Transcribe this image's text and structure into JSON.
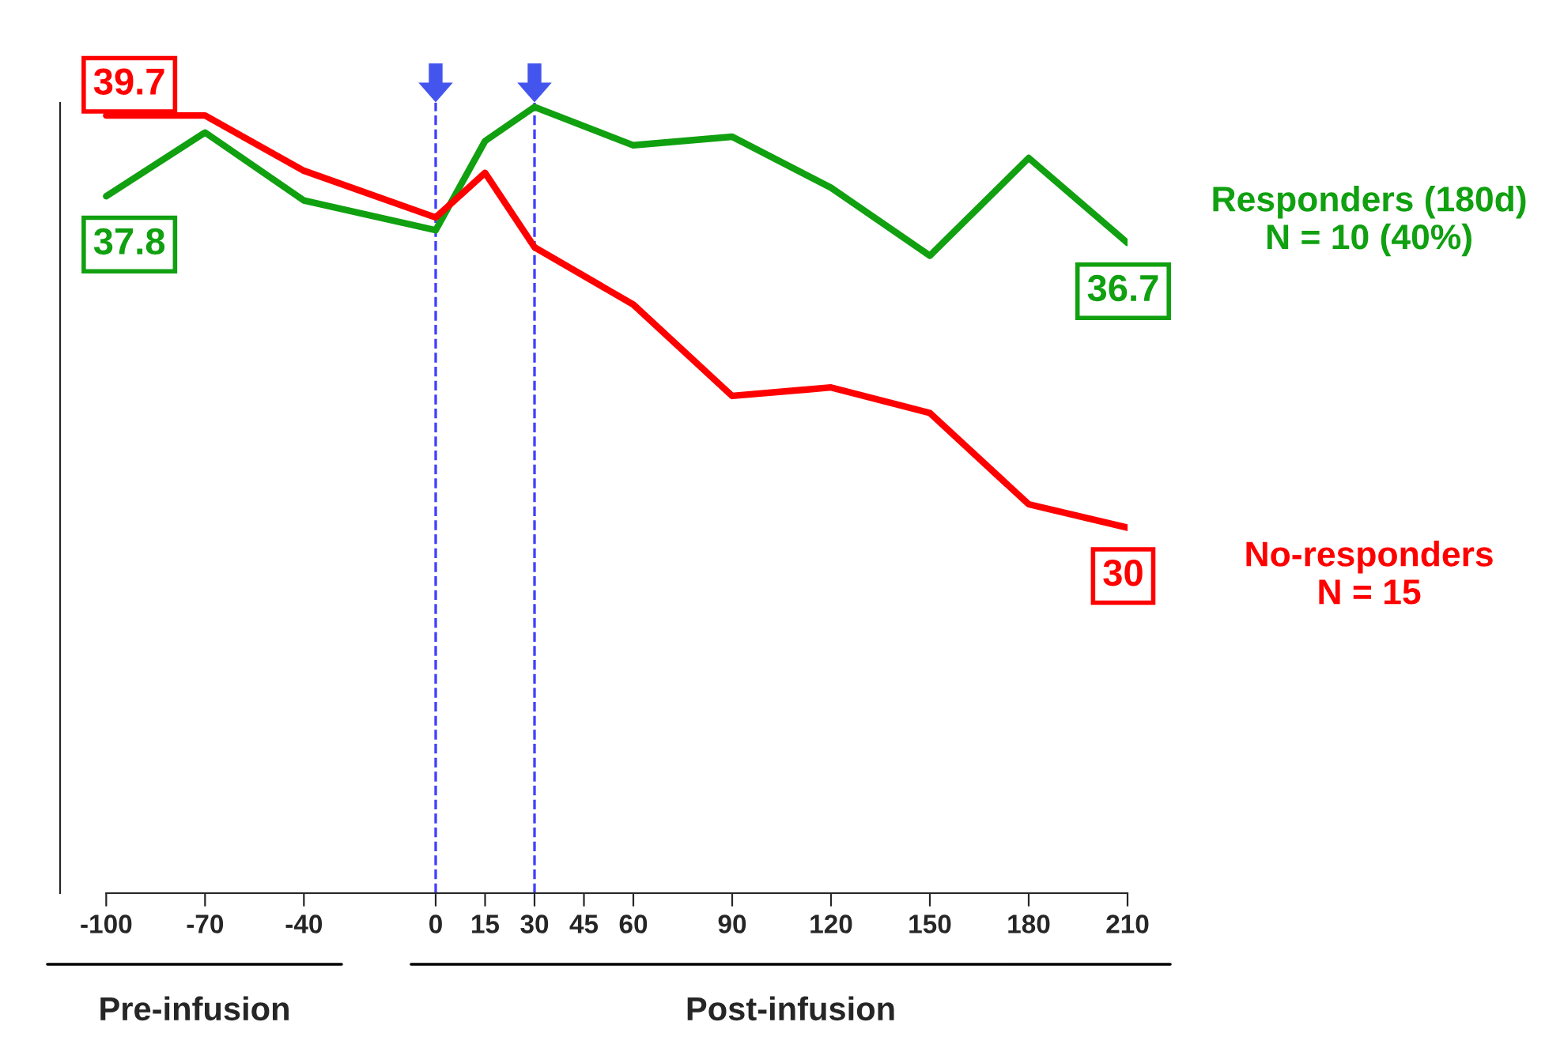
{
  "chart_data": {
    "type": "line",
    "x": [
      -100,
      -70,
      -40,
      0,
      15,
      30,
      60,
      90,
      120,
      150,
      180,
      210
    ],
    "series": [
      {
        "name": "Responders (180d)\nN = 10 (40%)",
        "color": "#10a010",
        "values": [
          37.8,
          39.3,
          37.7,
          37.0,
          39.1,
          39.9,
          39.0,
          39.2,
          38.0,
          36.4,
          38.7,
          36.7
        ],
        "value_labels": [
          "37.8",
          null,
          null,
          null,
          null,
          null,
          null,
          null,
          null,
          null,
          null,
          "36.7"
        ]
      },
      {
        "name": "No-responders\nN = 15",
        "color": "#ff0000",
        "values": [
          39.7,
          39.7,
          38.4,
          37.3,
          38.35,
          36.6,
          35.25,
          33.1,
          33.3,
          32.7,
          30.55,
          30
        ],
        "value_labels": [
          "39.7",
          null,
          null,
          null,
          null,
          null,
          null,
          null,
          null,
          null,
          null,
          "30"
        ]
      }
    ],
    "xlim": [
      -114,
      210
    ],
    "xticks": [
      -100,
      -70,
      -40,
      0,
      15,
      30,
      45,
      60,
      90,
      120,
      150,
      180,
      210
    ],
    "ylim": [
      21.4,
      40
    ],
    "ref_lines": [
      {
        "axis": "x",
        "value": 0,
        "color": "#4040ff",
        "line_style": "dashed"
      },
      {
        "axis": "x",
        "value": 30,
        "color": "#4040ff",
        "line_style": "dashed"
      }
    ],
    "annotations": [
      "Pre-infusion",
      "Post-infusion"
    ],
    "tick_labels": "x",
    "line_style": "solid",
    "marker": "none"
  }
}
